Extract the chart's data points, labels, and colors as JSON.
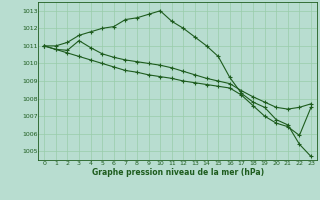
{
  "title": "Graphe pression niveau de la mer (hPa)",
  "bg_color": "#b8ddd0",
  "grid_color": "#99ccaa",
  "line_color": "#1e5c1e",
  "xlim": [
    -0.5,
    23.5
  ],
  "ylim": [
    1004.5,
    1013.5
  ],
  "yticks": [
    1005,
    1006,
    1007,
    1008,
    1009,
    1010,
    1011,
    1012,
    1013
  ],
  "xticks": [
    0,
    1,
    2,
    3,
    4,
    5,
    6,
    7,
    8,
    9,
    10,
    11,
    12,
    13,
    14,
    15,
    16,
    17,
    18,
    19,
    20,
    21,
    22,
    23
  ],
  "series": [
    [
      1011.0,
      1011.0,
      1011.2,
      1011.6,
      1011.8,
      1012.0,
      1012.1,
      1012.5,
      1012.6,
      1012.8,
      1013.0,
      1012.4,
      1012.0,
      1011.5,
      1011.0,
      1010.4,
      1009.2,
      1008.3,
      1007.8,
      1007.5,
      1006.8,
      1006.5,
      1005.4,
      1004.7
    ],
    [
      1011.0,
      1010.8,
      1010.75,
      1011.3,
      1010.9,
      1010.55,
      1010.35,
      1010.2,
      1010.1,
      1010.0,
      1009.9,
      1009.75,
      1009.55,
      1009.35,
      1009.15,
      1009.0,
      1008.85,
      1008.45,
      1008.1,
      1007.8,
      1007.5,
      1007.4,
      1007.5,
      1007.7
    ],
    [
      1011.0,
      1010.8,
      1010.6,
      1010.4,
      1010.2,
      1010.0,
      1009.8,
      1009.6,
      1009.5,
      1009.35,
      1009.25,
      1009.15,
      1009.0,
      1008.9,
      1008.8,
      1008.7,
      1008.6,
      1008.2,
      1007.6,
      1007.0,
      1006.6,
      1006.4,
      1005.9,
      1007.5
    ]
  ]
}
